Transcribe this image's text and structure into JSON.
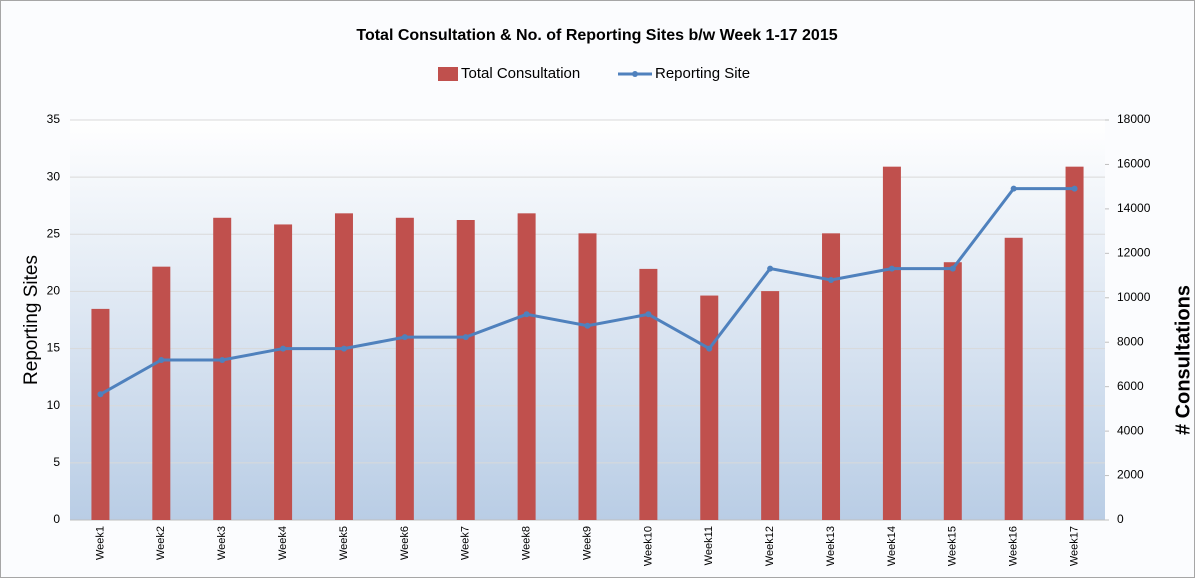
{
  "chart_data": {
    "type": "bar",
    "title": "Total Consultation & No. of Reporting Sites b/w Week 1-17 2015",
    "y_label": "Reporting Sites",
    "y2_label": "# Consultations",
    "categories": [
      "Week1",
      "Week2",
      "Week3",
      "Week4",
      "Week5",
      "Week6",
      "Week7",
      "Week8",
      "Week9",
      "Week10",
      "Week11",
      "Week12",
      "Week13",
      "Week14",
      "Week15",
      "Week16",
      "Week17"
    ],
    "series": [
      {
        "name": "Total Consultation",
        "type": "bar",
        "axis": "y2",
        "color": "#c0504d",
        "values": [
          9500,
          11400,
          13600,
          13300,
          13800,
          13600,
          13500,
          13800,
          12900,
          11300,
          10100,
          10300,
          12900,
          15900,
          11600,
          12700,
          15900
        ]
      },
      {
        "name": "Reporting Site",
        "type": "line",
        "color": "#4f81bd",
        "values": [
          11,
          14,
          14,
          15,
          15,
          16,
          16,
          18,
          17,
          18,
          15,
          22,
          21,
          22,
          22,
          29,
          29
        ]
      }
    ],
    "ylim": [
      0,
      35
    ],
    "yticks": [
      0,
      5,
      10,
      15,
      20,
      25,
      30,
      35
    ],
    "y2lim": [
      0,
      18000
    ],
    "y2ticks": [
      0,
      2000,
      4000,
      6000,
      8000,
      10000,
      12000,
      14000,
      16000,
      18000
    ],
    "grid": true,
    "legend": "top"
  }
}
